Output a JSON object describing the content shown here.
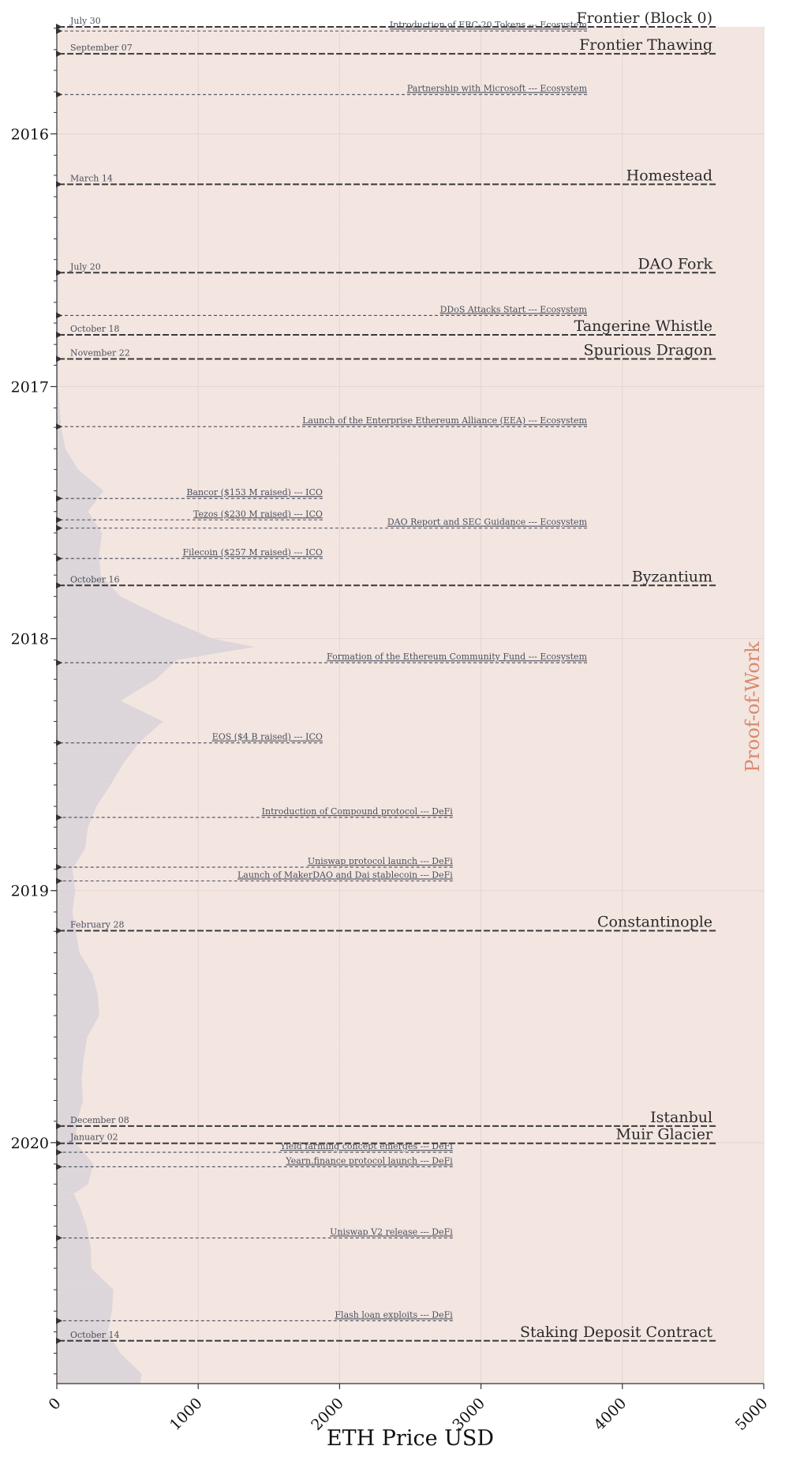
{
  "chart_data": {
    "type": "area",
    "orientation": "horizontal",
    "xlabel": "ETH Price USD",
    "xlim": [
      0,
      5000
    ],
    "x_ticks": [
      "0",
      "1000",
      "2000",
      "3000",
      "4000",
      "5000"
    ],
    "y_ticks": [
      {
        "label": "2016",
        "date": "2016-01-01"
      },
      {
        "label": "2017",
        "date": "2017-01-01"
      },
      {
        "label": "2018",
        "date": "2018-01-01"
      },
      {
        "label": "2019",
        "date": "2019-01-01"
      },
      {
        "label": "2020",
        "date": "2020-01-01"
      }
    ],
    "ylim": [
      "2015-07-30",
      "2020-12-15"
    ],
    "grid": true,
    "era_band": {
      "label": "Proof-of-Work",
      "start": "2015-07-30",
      "end": "2020-12-15",
      "color": "#f3e6e1",
      "label_color": "#d98a6e"
    },
    "colors": {
      "price_fill": "#d9d3d9",
      "forks": "#3a3a3a",
      "events": "#4a4f5c",
      "grid": "#e3d6d2"
    },
    "forks": [
      {
        "label": "Frontier (Block 0)",
        "date": "2015-07-30",
        "date_label": "July 30"
      },
      {
        "label": "Frontier Thawing",
        "date": "2015-09-07",
        "date_label": "September 07"
      },
      {
        "label": "Homestead",
        "date": "2016-03-14",
        "date_label": "March 14"
      },
      {
        "label": "DAO Fork",
        "date": "2016-07-20",
        "date_label": "July 20"
      },
      {
        "label": "Tangerine Whistle",
        "date": "2016-10-18",
        "date_label": "October 18"
      },
      {
        "label": "Spurious Dragon",
        "date": "2016-11-22",
        "date_label": "November 22"
      },
      {
        "label": "Byzantium",
        "date": "2017-10-16",
        "date_label": "October 16"
      },
      {
        "label": "Constantinople",
        "date": "2019-02-28",
        "date_label": "February 28"
      },
      {
        "label": "Istanbul",
        "date": "2019-12-08",
        "date_label": "December 08"
      },
      {
        "label": "Muir Glacier",
        "date": "2020-01-02",
        "date_label": "January 02"
      },
      {
        "label": "Staking Deposit Contract",
        "date": "2020-10-14",
        "date_label": "October 14"
      }
    ],
    "events": [
      {
        "label": "Introduction of ERC-20 Tokens --- Ecosystem",
        "date": "2015-08-05",
        "category": "Ecosystem",
        "end_x": 3750
      },
      {
        "label": "Partnership with Microsoft --- Ecosystem",
        "date": "2015-11-05",
        "category": "Ecosystem",
        "end_x": 3750
      },
      {
        "label": "DDoS Attacks Start --- Ecosystem",
        "date": "2016-09-20",
        "category": "Ecosystem",
        "end_x": 3750
      },
      {
        "label": "Launch of the Enterprise Ethereum Alliance (EEA) --- Ecosystem",
        "date": "2017-02-28",
        "category": "Ecosystem",
        "end_x": 3750
      },
      {
        "label": "Bancor ($153 M raised) --- ICO",
        "date": "2017-06-12",
        "category": "ICO",
        "end_x": 1880
      },
      {
        "label": "Tezos ($230 M raised) --- ICO",
        "date": "2017-07-13",
        "category": "ICO",
        "end_x": 1880
      },
      {
        "label": "DAO Report and SEC Guidance --- Ecosystem",
        "date": "2017-07-25",
        "category": "Ecosystem",
        "end_x": 3750
      },
      {
        "label": "Filecoin ($257 M raised) --- ICO",
        "date": "2017-09-07",
        "category": "ICO",
        "end_x": 1880
      },
      {
        "label": "Formation of the Ethereum Community Fund --- Ecosystem",
        "date": "2018-02-05",
        "category": "Ecosystem",
        "end_x": 3750
      },
      {
        "label": "EOS ($4 B raised) --- ICO",
        "date": "2018-06-01",
        "category": "ICO",
        "end_x": 1880
      },
      {
        "label": "Introduction of Compound protocol --- DeFi",
        "date": "2018-09-17",
        "category": "DeFi",
        "end_x": 2800
      },
      {
        "label": "Uniswap protocol launch --- DeFi",
        "date": "2018-11-28",
        "category": "DeFi",
        "end_x": 2800
      },
      {
        "label": "Launch of MakerDAO and Dai stablecoin --- DeFi",
        "date": "2018-12-18",
        "category": "DeFi",
        "end_x": 2800
      },
      {
        "label": "Yield farming concept emerges --- DeFi",
        "date": "2020-01-15",
        "category": "DeFi",
        "end_x": 2800
      },
      {
        "label": "Yearn.finance protocol launch --- DeFi",
        "date": "2020-02-05",
        "category": "DeFi",
        "end_x": 2800
      },
      {
        "label": "Uniswap V2 release --- DeFi",
        "date": "2020-05-18",
        "category": "DeFi",
        "end_x": 2800
      },
      {
        "label": "Flash loan exploits --- DeFi",
        "date": "2020-09-15",
        "category": "DeFi",
        "end_x": 2800
      }
    ],
    "price_series": [
      {
        "date": "2015-07-30",
        "price": 2
      },
      {
        "date": "2015-10-01",
        "price": 1
      },
      {
        "date": "2016-01-01",
        "price": 1
      },
      {
        "date": "2016-03-01",
        "price": 10
      },
      {
        "date": "2016-06-01",
        "price": 14
      },
      {
        "date": "2016-09-01",
        "price": 12
      },
      {
        "date": "2017-01-01",
        "price": 9
      },
      {
        "date": "2017-03-01",
        "price": 30
      },
      {
        "date": "2017-04-01",
        "price": 60
      },
      {
        "date": "2017-05-01",
        "price": 150
      },
      {
        "date": "2017-06-01",
        "price": 330
      },
      {
        "date": "2017-07-01",
        "price": 220
      },
      {
        "date": "2017-08-01",
        "price": 320
      },
      {
        "date": "2017-09-01",
        "price": 300
      },
      {
        "date": "2017-10-01",
        "price": 310
      },
      {
        "date": "2017-11-01",
        "price": 450
      },
      {
        "date": "2017-12-01",
        "price": 750
      },
      {
        "date": "2018-01-01",
        "price": 1100
      },
      {
        "date": "2018-01-13",
        "price": 1400
      },
      {
        "date": "2018-02-01",
        "price": 850
      },
      {
        "date": "2018-03-01",
        "price": 700
      },
      {
        "date": "2018-04-01",
        "price": 450
      },
      {
        "date": "2018-05-01",
        "price": 750
      },
      {
        "date": "2018-06-01",
        "price": 580
      },
      {
        "date": "2018-07-01",
        "price": 470
      },
      {
        "date": "2018-08-01",
        "price": 380
      },
      {
        "date": "2018-09-01",
        "price": 280
      },
      {
        "date": "2018-10-01",
        "price": 220
      },
      {
        "date": "2018-11-01",
        "price": 200
      },
      {
        "date": "2018-12-01",
        "price": 110
      },
      {
        "date": "2019-01-01",
        "price": 130
      },
      {
        "date": "2019-02-01",
        "price": 110
      },
      {
        "date": "2019-03-01",
        "price": 135
      },
      {
        "date": "2019-04-01",
        "price": 160
      },
      {
        "date": "2019-05-01",
        "price": 250
      },
      {
        "date": "2019-06-01",
        "price": 290
      },
      {
        "date": "2019-07-01",
        "price": 300
      },
      {
        "date": "2019-08-01",
        "price": 215
      },
      {
        "date": "2019-09-01",
        "price": 190
      },
      {
        "date": "2019-10-01",
        "price": 175
      },
      {
        "date": "2019-11-01",
        "price": 185
      },
      {
        "date": "2019-12-01",
        "price": 145
      },
      {
        "date": "2020-01-01",
        "price": 130
      },
      {
        "date": "2020-02-01",
        "price": 260
      },
      {
        "date": "2020-03-01",
        "price": 220
      },
      {
        "date": "2020-03-15",
        "price": 120
      },
      {
        "date": "2020-04-01",
        "price": 160
      },
      {
        "date": "2020-05-01",
        "price": 210
      },
      {
        "date": "2020-06-01",
        "price": 240
      },
      {
        "date": "2020-07-01",
        "price": 245
      },
      {
        "date": "2020-08-01",
        "price": 400
      },
      {
        "date": "2020-09-01",
        "price": 390
      },
      {
        "date": "2020-10-01",
        "price": 360
      },
      {
        "date": "2020-11-01",
        "price": 450
      },
      {
        "date": "2020-12-01",
        "price": 600
      },
      {
        "date": "2020-12-15",
        "price": 590
      }
    ]
  }
}
